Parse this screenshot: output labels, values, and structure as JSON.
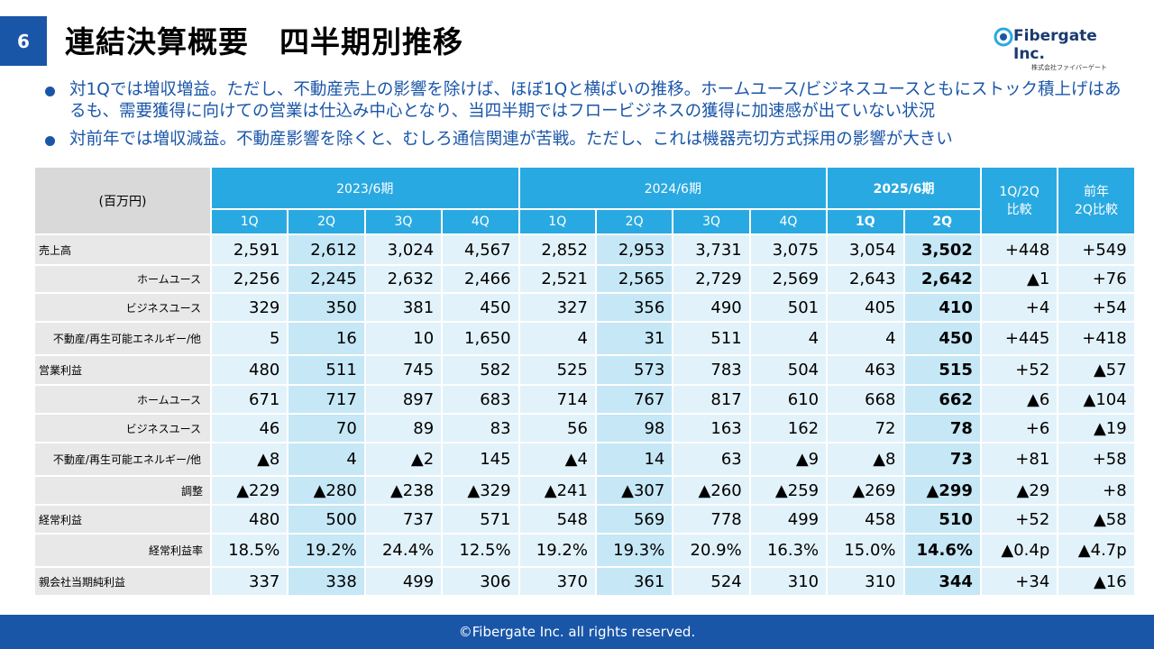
{
  "header": {
    "page_number": "6",
    "title": "連結決算概要　四半期別推移",
    "logo": "Fibergate Inc.",
    "logo_sub": "株式会社ファイバーゲート"
  },
  "bullets": [
    "対1Qでは増収増益。ただし、不動産売上の影響を除けば、ほぼ1Qと横ばいの推移。ホームユース/ビジネスユースともにストック積上げはあるも、需要獲得に向けての営業は仕込み中心となり、当四半期ではフロービジネスの獲得に加速感が出ていない状況",
    "対前年では増収減益。不動産影響を除くと、むしろ通信関連が苦戦。ただし、これは機器売切方式採用の影響が大きい"
  ],
  "table": {
    "unit": "(百万円)",
    "periods": [
      "2023/6期",
      "2024/6期",
      "2025/6期"
    ],
    "compare_headers": [
      "1Q/2Q\n比較",
      "前年\n2Q比較"
    ],
    "quarters": [
      "1Q",
      "2Q",
      "3Q",
      "4Q",
      "1Q",
      "2Q",
      "3Q",
      "4Q",
      "1Q",
      "2Q"
    ],
    "rows": [
      {
        "label": "売上高",
        "cells": [
          "2,591",
          "2,612",
          "3,024",
          "4,567",
          "2,852",
          "2,953",
          "3,731",
          "3,075",
          "3,054",
          "3,502",
          "+448",
          "+549"
        ]
      },
      {
        "label": "ホームユース",
        "cells": [
          "2,256",
          "2,245",
          "2,632",
          "2,466",
          "2,521",
          "2,565",
          "2,729",
          "2,569",
          "2,643",
          "2,642",
          "▲1",
          "+76"
        ]
      },
      {
        "label": "ビジネスユース",
        "cells": [
          "329",
          "350",
          "381",
          "450",
          "327",
          "356",
          "490",
          "501",
          "405",
          "410",
          "+4",
          "+54"
        ]
      },
      {
        "label": "不動産/再生可能エネルギー/他",
        "cells": [
          "5",
          "16",
          "10",
          "1,650",
          "4",
          "31",
          "511",
          "4",
          "4",
          "450",
          "+445",
          "+418"
        ]
      },
      {
        "label": "営業利益",
        "cells": [
          "480",
          "511",
          "745",
          "582",
          "525",
          "573",
          "783",
          "504",
          "463",
          "515",
          "+52",
          "▲57"
        ]
      },
      {
        "label": "ホームユース",
        "cells": [
          "671",
          "717",
          "897",
          "683",
          "714",
          "767",
          "817",
          "610",
          "668",
          "662",
          "▲6",
          "▲104"
        ]
      },
      {
        "label": "ビジネスユース",
        "cells": [
          "46",
          "70",
          "89",
          "83",
          "56",
          "98",
          "163",
          "162",
          "72",
          "78",
          "+6",
          "▲19"
        ]
      },
      {
        "label": "不動産/再生可能エネルギー/他",
        "cells": [
          "▲8",
          "4",
          "▲2",
          "145",
          "▲4",
          "14",
          "63",
          "▲9",
          "▲8",
          "73",
          "+81",
          "+58"
        ]
      },
      {
        "label": "調整",
        "cells": [
          "▲229",
          "▲280",
          "▲238",
          "▲329",
          "▲241",
          "▲307",
          "▲260",
          "▲259",
          "▲269",
          "▲299",
          "▲29",
          "+8"
        ]
      },
      {
        "label": "経常利益",
        "cells": [
          "480",
          "500",
          "737",
          "571",
          "548",
          "569",
          "778",
          "499",
          "458",
          "510",
          "+52",
          "▲58"
        ]
      },
      {
        "label": "経常利益率",
        "cells": [
          "18.5%",
          "19.2%",
          "24.4%",
          "12.5%",
          "19.2%",
          "19.3%",
          "20.9%",
          "16.3%",
          "15.0%",
          "14.6%",
          "▲0.4p",
          "▲4.7p"
        ]
      },
      {
        "label": "親会社当期純利益",
        "cells": [
          "337",
          "338",
          "499",
          "306",
          "370",
          "361",
          "524",
          "310",
          "310",
          "344",
          "+34",
          "▲16"
        ]
      }
    ]
  },
  "footer": "©Fibergate Inc. all rights reserved."
}
